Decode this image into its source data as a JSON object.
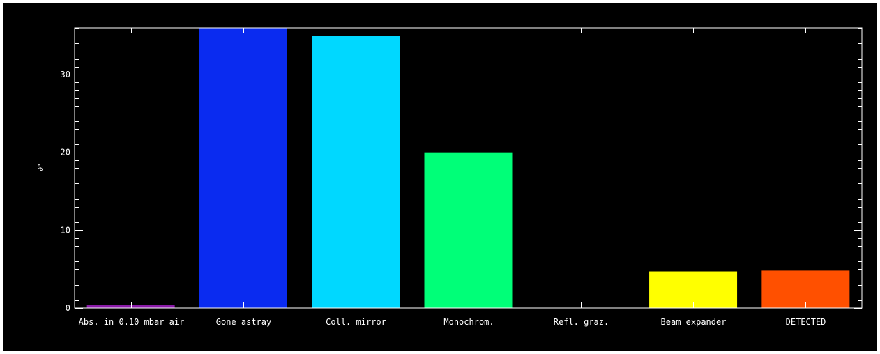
{
  "chart_data": {
    "type": "bar",
    "ylabel": "%",
    "ylim": [
      0,
      36
    ],
    "yticks": [
      0,
      10,
      20,
      30
    ],
    "ytick_labels": [
      "0",
      "10",
      "20",
      "30"
    ],
    "y_minor_step": 1,
    "grid": false,
    "categories": [
      "Abs. in 0.10 mbar air",
      "Gone astray",
      "Coll. mirror",
      "Monochrom.",
      "Refl. graz.",
      "Beam expander",
      "DETECTED"
    ],
    "values": [
      0.4,
      36,
      35,
      20,
      0,
      4.7,
      4.8
    ],
    "colors": [
      "#8a1aa8",
      "#0a2bf0",
      "#00d8ff",
      "#00ff78",
      "#000000",
      "#ffff00",
      "#ff5000"
    ],
    "background": "#000000",
    "axis_color": "#ffffff"
  }
}
